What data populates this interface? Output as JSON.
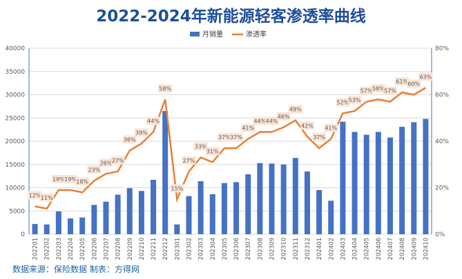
{
  "chart_data": {
    "type": "bar+line",
    "title": "2022-2024年新能源轻客渗透率曲线",
    "categories": [
      "202201",
      "202202",
      "202203",
      "202204",
      "202205",
      "202206",
      "202207",
      "202208",
      "202209",
      "202210",
      "202211",
      "202212",
      "202301",
      "202302",
      "202303",
      "202304",
      "202305",
      "202306",
      "202307",
      "202308",
      "202309",
      "202310",
      "202311",
      "202312",
      "202401",
      "202402",
      "202403",
      "202404",
      "202405",
      "202406",
      "202407",
      "202408",
      "202409",
      "202410"
    ],
    "series": [
      {
        "name": "月销量",
        "type": "bar",
        "axis": "left",
        "color": "#4472c4",
        "values": [
          2200,
          2100,
          4900,
          3400,
          3600,
          6300,
          7000,
          8500,
          9900,
          9300,
          11700,
          26500,
          2100,
          8200,
          11400,
          8600,
          11000,
          11200,
          12900,
          15300,
          15200,
          15000,
          16400,
          13500,
          9500,
          7200,
          24200,
          22000,
          21400,
          22000,
          20800,
          23100,
          24100,
          24800
        ]
      },
      {
        "name": "渗透率",
        "type": "line",
        "axis": "right",
        "color": "#ed7d31",
        "values": [
          12,
          11,
          19,
          19,
          18,
          23,
          26,
          27,
          36,
          39,
          44,
          58,
          15,
          27,
          33,
          31,
          37,
          37,
          41,
          44,
          44,
          46,
          49,
          42,
          37,
          41,
          52,
          53,
          57,
          58,
          57,
          61,
          60,
          63
        ]
      }
    ],
    "ylim": [
      0,
      40000
    ],
    "yticks": [
      0,
      5000,
      10000,
      15000,
      20000,
      25000,
      30000,
      35000,
      40000
    ],
    "y2lim": [
      0,
      80
    ],
    "y2ticks": [
      "0%",
      "20%",
      "40%",
      "60%",
      "80%"
    ],
    "grid": true,
    "legend": "top"
  },
  "footer": "数据来源：保险数据 制表：方得网"
}
